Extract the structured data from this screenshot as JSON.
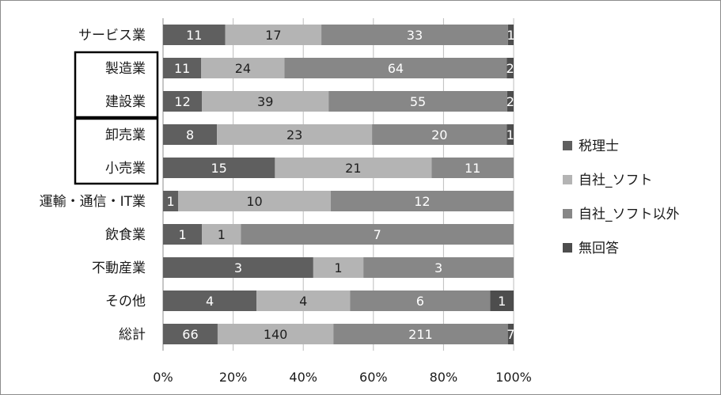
{
  "chart_data": {
    "type": "bar",
    "orientation": "horizontal",
    "stacked": "percent",
    "categories": [
      "サービス業",
      "製造業",
      "建設業",
      "卸売業",
      "小売業",
      "運輸・通信・IT業",
      "飲食業",
      "不動産業",
      "その他",
      "総計"
    ],
    "series": [
      {
        "name": "税理士",
        "color": "#5f5f5f",
        "values": [
          11,
          11,
          12,
          8,
          15,
          1,
          1,
          3,
          4,
          66
        ]
      },
      {
        "name": "自社_ソフト",
        "color": "#b4b4b4",
        "values": [
          17,
          24,
          39,
          23,
          21,
          10,
          1,
          1,
          4,
          140
        ]
      },
      {
        "name": "自社_ソフト以外",
        "color": "#878787",
        "values": [
          33,
          64,
          55,
          20,
          11,
          12,
          7,
          3,
          6,
          211
        ]
      },
      {
        "name": "無回答",
        "color": "#4d4d4d",
        "values": [
          1,
          2,
          2,
          1,
          0,
          0,
          0,
          0,
          1,
          7
        ]
      }
    ],
    "x_ticks": [
      "0%",
      "20%",
      "40%",
      "60%",
      "80%",
      "100%"
    ],
    "xlim": [
      0,
      100
    ],
    "grid": true,
    "legend_position": "right",
    "boxed_groups": [
      [
        "製造業",
        "建設業"
      ],
      [
        "卸売業",
        "小売業"
      ]
    ]
  }
}
